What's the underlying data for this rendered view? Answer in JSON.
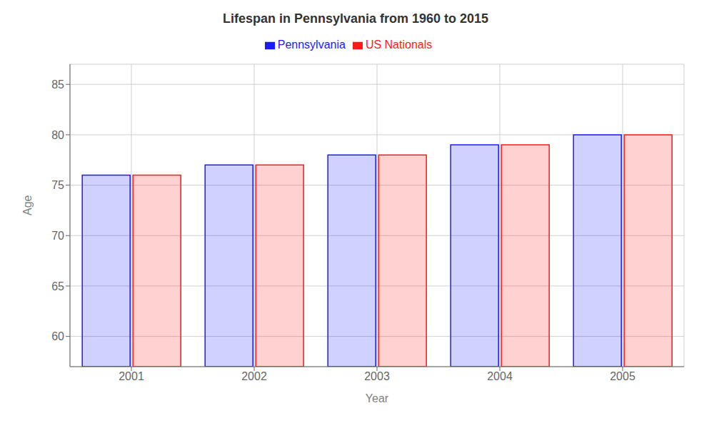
{
  "chart_data": {
    "type": "bar",
    "title": "Lifespan in Pennsylvania from 1960 to 2015",
    "xlabel": "Year",
    "ylabel": "Age",
    "categories": [
      "2001",
      "2002",
      "2003",
      "2004",
      "2005"
    ],
    "series": [
      {
        "name": "Pennsylvania",
        "color": "#1a1aff",
        "values": [
          76,
          77,
          78,
          79,
          80
        ]
      },
      {
        "name": "US Nationals",
        "color": "#ff1a1a",
        "values": [
          76,
          77,
          78,
          79,
          80
        ]
      }
    ],
    "ylim": [
      57,
      87
    ],
    "yticks": [
      60,
      65,
      70,
      75,
      80,
      85
    ],
    "grid": true,
    "legend": "top"
  }
}
